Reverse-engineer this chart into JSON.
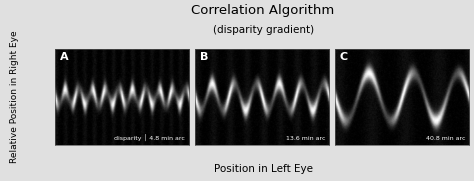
{
  "title": "Correlation Algorithm",
  "subtitle": "(disparity gradient)",
  "xlabel": "Position in Left Eye",
  "ylabel": "Relative Position in Right Eye",
  "panel_labels": [
    "A",
    "B",
    "C"
  ],
  "panel_annotations": [
    "disparity │ 4.8 min arc",
    "13.6 min arc",
    "40.8 min arc"
  ],
  "n_panels": 3,
  "background_color": "#e0e0e0",
  "stripe_freq_A": 14,
  "stripe_freq_B": 8,
  "stripe_freq_C": 4,
  "wave_freq_A": 10,
  "wave_freq_B": 6,
  "wave_freq_C": 3,
  "wave_amp_A": 0.08,
  "wave_amp_B": 0.14,
  "wave_amp_C": 0.25
}
